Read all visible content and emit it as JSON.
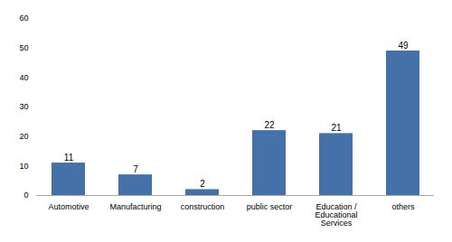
{
  "chart_data": {
    "type": "bar",
    "categories": [
      "Automotive",
      "Manufacturing",
      "construction",
      "public sector",
      "Education /\nEducational\nServices",
      "others"
    ],
    "values": [
      11,
      7,
      2,
      22,
      21,
      49
    ],
    "color": "#4472a8",
    "ylim": [
      0,
      60
    ],
    "yticks": [
      0,
      10,
      20,
      30,
      40,
      50,
      60
    ],
    "grid": false,
    "data_labels": true
  }
}
